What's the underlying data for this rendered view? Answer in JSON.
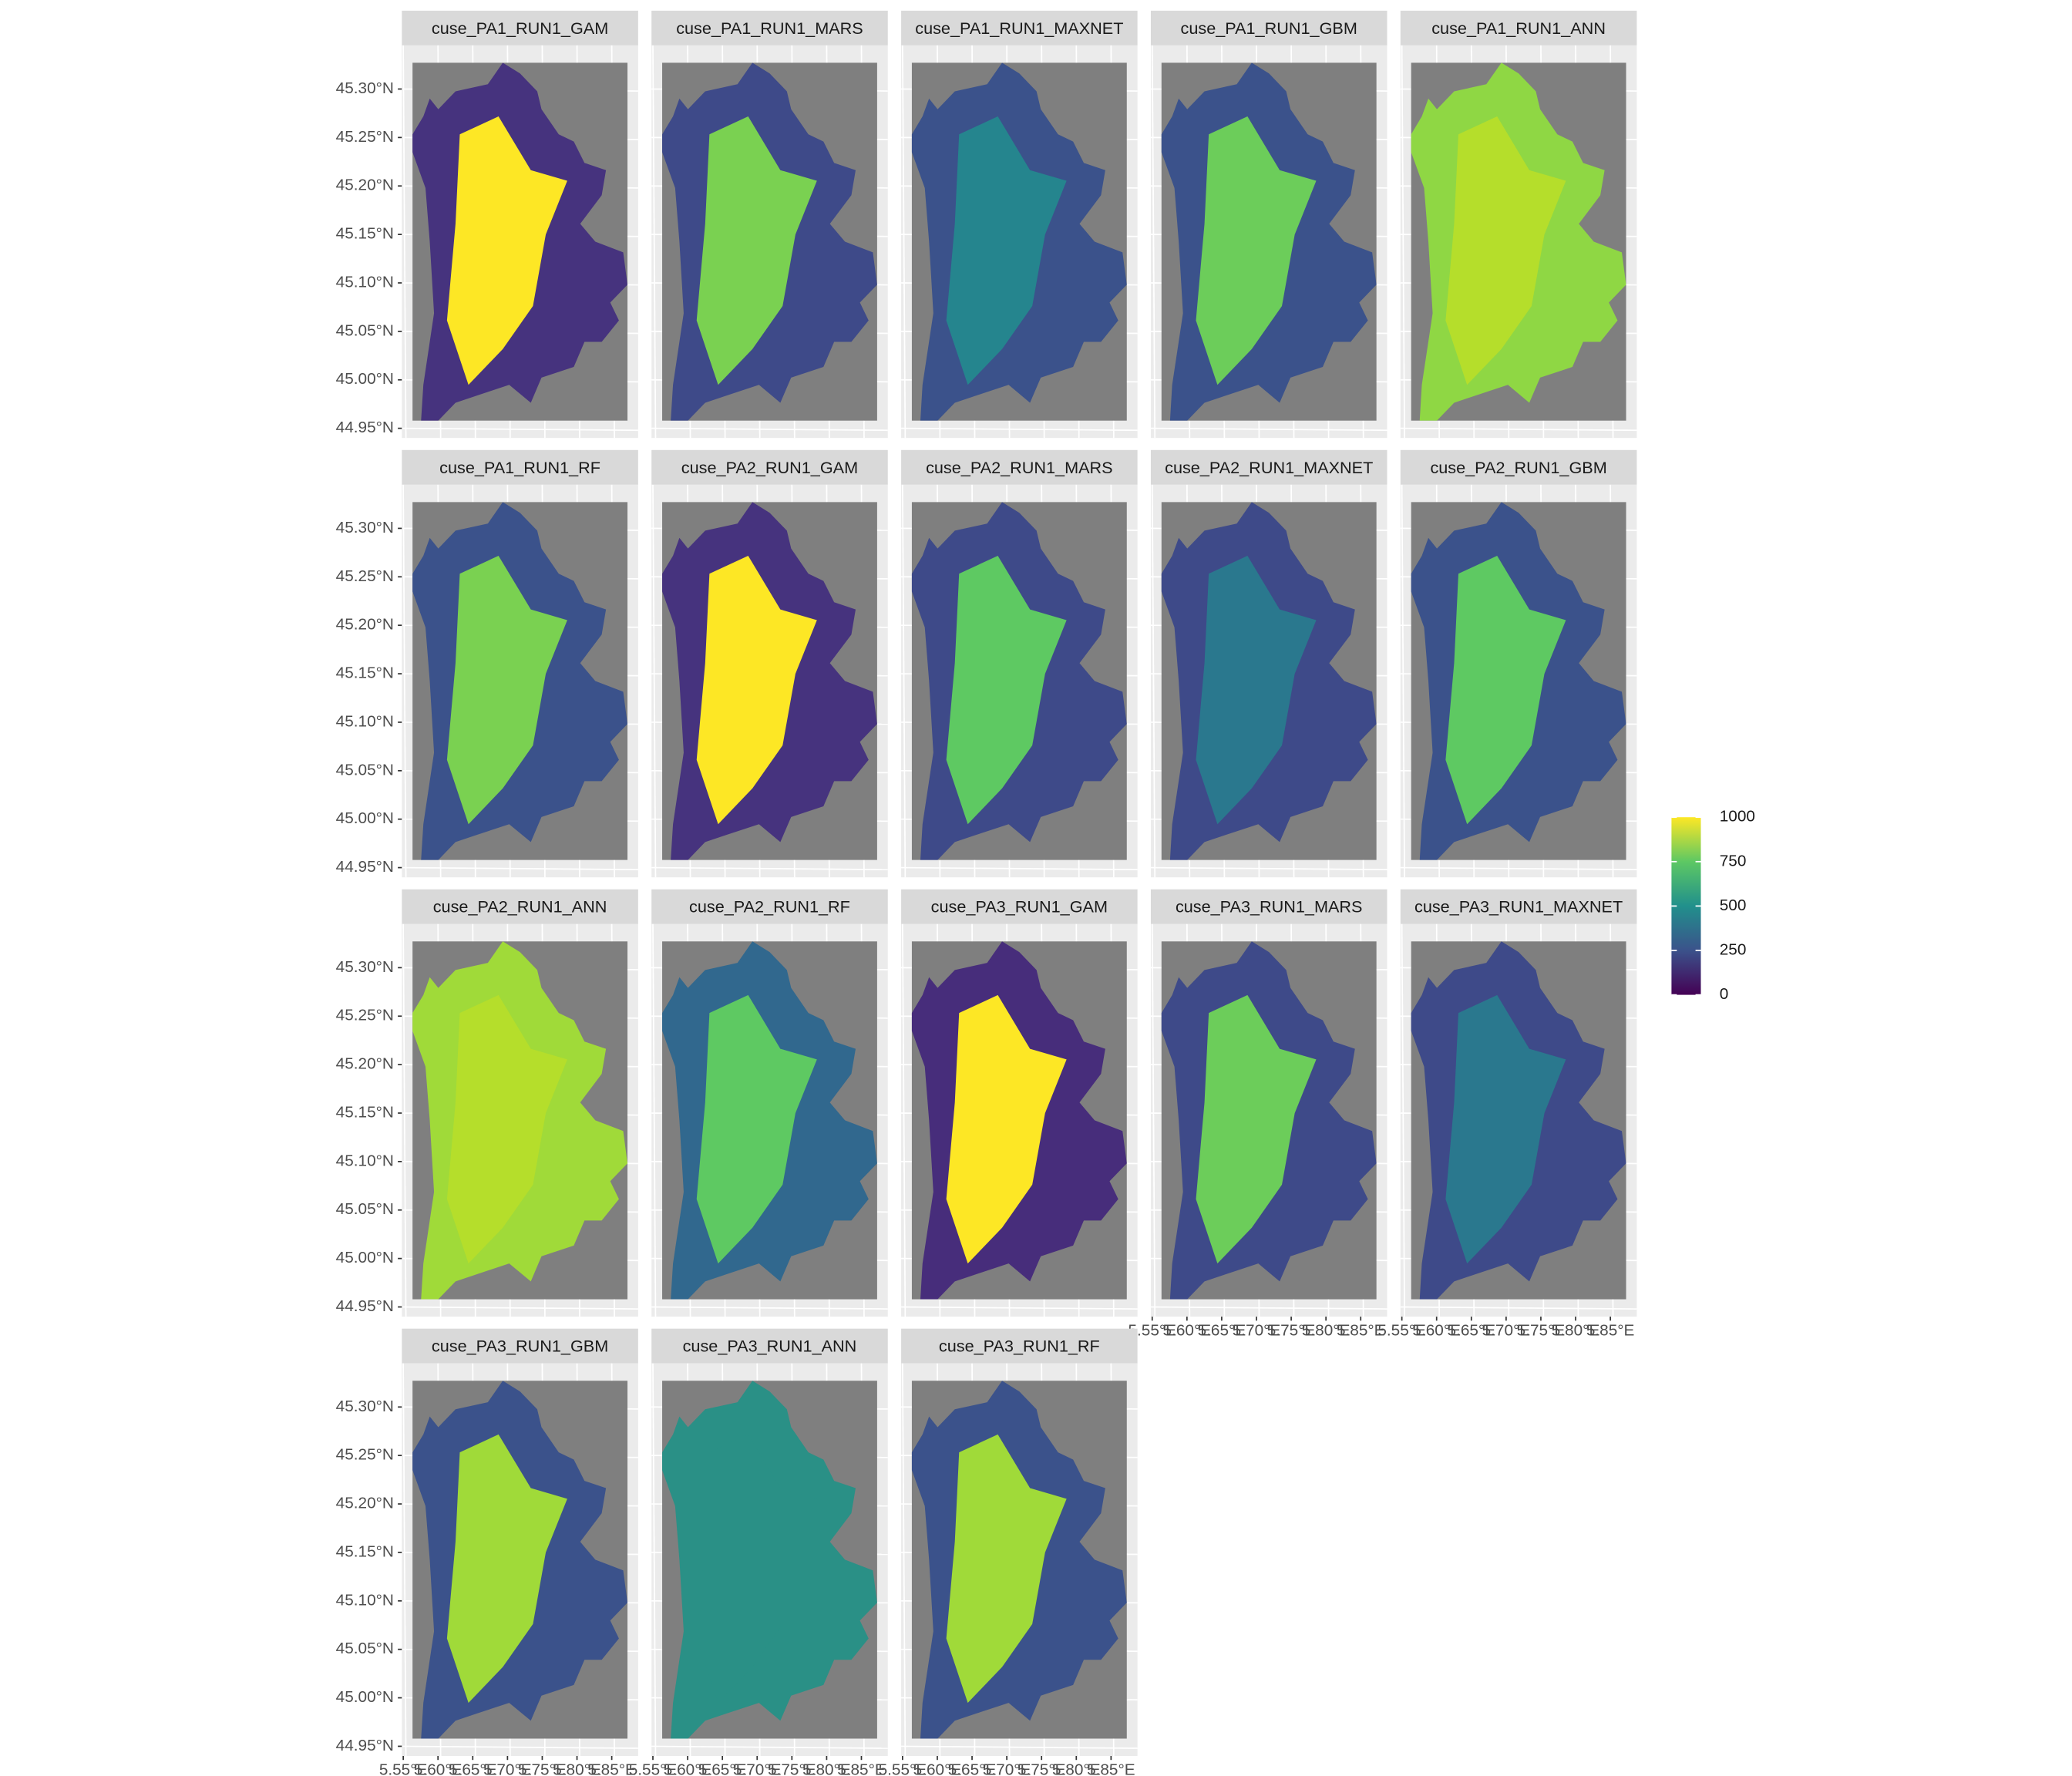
{
  "chart_data": {
    "type": "raster-map",
    "panels": [
      {
        "title": "cuse_PA1_RUN1_GAM",
        "colors": [
          "#46337e",
          "#fde725"
        ]
      },
      {
        "title": "cuse_PA1_RUN1_MARS",
        "colors": [
          "#3e4a89",
          "#7ad151"
        ]
      },
      {
        "title": "cuse_PA1_RUN1_MAXNET",
        "colors": [
          "#3b528b",
          "#25858e"
        ]
      },
      {
        "title": "cuse_PA1_RUN1_GBM",
        "colors": [
          "#3b528b",
          "#6ccd5a"
        ]
      },
      {
        "title": "cuse_PA1_RUN1_ANN",
        "colors": [
          "#8fd744",
          "#b5de2b"
        ]
      },
      {
        "title": "cuse_PA1_RUN1_RF",
        "colors": [
          "#3b528b",
          "#7ad151"
        ]
      },
      {
        "title": "cuse_PA2_RUN1_GAM",
        "colors": [
          "#46337e",
          "#fde725"
        ]
      },
      {
        "title": "cuse_PA2_RUN1_MARS",
        "colors": [
          "#3e4a89",
          "#5ec962"
        ]
      },
      {
        "title": "cuse_PA2_RUN1_MAXNET",
        "colors": [
          "#3e4a89",
          "#2a788e"
        ]
      },
      {
        "title": "cuse_PA2_RUN1_GBM",
        "colors": [
          "#3b528b",
          "#5ec962"
        ]
      },
      {
        "title": "cuse_PA2_RUN1_ANN",
        "colors": [
          "#a0da39",
          "#b5de2b"
        ]
      },
      {
        "title": "cuse_PA2_RUN1_RF",
        "colors": [
          "#31688e",
          "#5ec962"
        ]
      },
      {
        "title": "cuse_PA3_RUN1_GAM",
        "colors": [
          "#472d7b",
          "#fde725"
        ]
      },
      {
        "title": "cuse_PA3_RUN1_MARS",
        "colors": [
          "#3e4a89",
          "#6ccd5a"
        ]
      },
      {
        "title": "cuse_PA3_RUN1_MAXNET",
        "colors": [
          "#3e4a89",
          "#2a788e"
        ]
      },
      {
        "title": "cuse_PA3_RUN1_GBM",
        "colors": [
          "#3b528b",
          "#a0da39"
        ]
      },
      {
        "title": "cuse_PA3_RUN1_ANN",
        "colors": [
          "#2a9086",
          "#2a9086"
        ]
      },
      {
        "title": "cuse_PA3_RUN1_RF",
        "colors": [
          "#3b528b",
          "#a0da39"
        ]
      }
    ],
    "ncol": 5,
    "ylim": [
      44.94,
      45.345
    ],
    "yticks": [
      {
        "value": 44.95,
        "label": "44.95°N"
      },
      {
        "value": 45.0,
        "label": "45.00°N"
      },
      {
        "value": 45.05,
        "label": "45.05°N"
      },
      {
        "value": 45.1,
        "label": "45.10°N"
      },
      {
        "value": 45.15,
        "label": "45.15°N"
      },
      {
        "value": 45.2,
        "label": "45.20°N"
      },
      {
        "value": 45.25,
        "label": "45.25°N"
      },
      {
        "value": 45.3,
        "label": "45.30°N"
      }
    ],
    "xlim": [
      5.548,
      5.888
    ],
    "xticks": [
      {
        "value": 5.55,
        "label": "5.55°E"
      },
      {
        "value": 5.6,
        "label": "5.60°E"
      },
      {
        "value": 5.65,
        "label": "5.65°E"
      },
      {
        "value": 5.7,
        "label": "5.70°E"
      },
      {
        "value": 5.75,
        "label": "5.75°E"
      },
      {
        "value": 5.8,
        "label": "5.80°E"
      },
      {
        "value": 5.85,
        "label": "5.85°E"
      }
    ],
    "grid": true,
    "legend": {
      "lim": [
        0,
        1000
      ],
      "ticks": [
        0,
        250,
        500,
        750,
        1000
      ],
      "colors": [
        "#440154",
        "#3b528b",
        "#21908c",
        "#5dc863",
        "#fde725"
      ]
    }
  }
}
